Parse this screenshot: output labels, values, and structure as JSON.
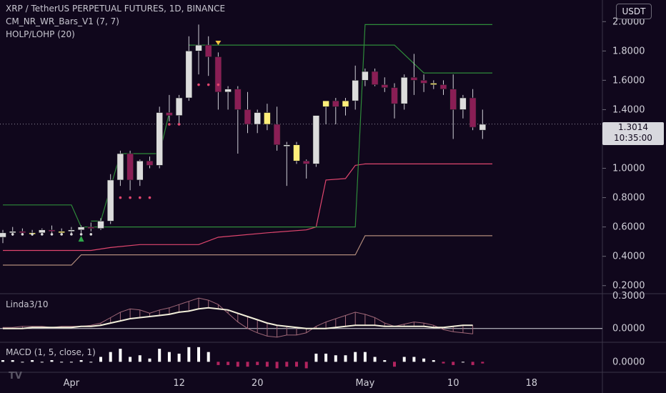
{
  "header": {
    "title": "XRP / TetherUS PERPETUAL FUTURES, 1D, BINANCE",
    "indicator1": "CM_NR_WR_Bars_V1 (7, 7)",
    "indicator2": "HOLP/LOHP (20)",
    "currency_button": "USDT"
  },
  "last_price": {
    "value": "1.3014",
    "countdown": "10:35:00"
  },
  "colors": {
    "background": "#10071c",
    "up_candle": "#dcdcdc",
    "down_candle": "#8a1e55",
    "narrow_range": "#ffee7a",
    "green_line": "#2e8b3a",
    "pink_line": "#e0466e",
    "tan_line": "#b08a7a",
    "linda_fast": "#a06878",
    "linda_slow": "#f2efda",
    "macd_up": "#ffffff",
    "macd_down": "#b3245f"
  },
  "chart_data": [
    {
      "type": "candlestick",
      "name": "main",
      "y_axis_labels": [
        "0.2000",
        "0.4000",
        "0.6000",
        "0.8000",
        "1.0000",
        "1.2000",
        "1.4000",
        "1.6000",
        "1.8000",
        "2.0000"
      ],
      "ylim": [
        0.15,
        2.05
      ],
      "x_axis_labels": [
        "Apr",
        "12",
        "20",
        "May",
        "10",
        "18"
      ],
      "x_axis_dates": [
        "2021-04-01",
        "2021-04-12",
        "2021-04-20",
        "2021-05-01",
        "2021-05-10",
        "2021-05-18"
      ],
      "candles": [
        {
          "date": "2021-03-25",
          "o": 0.53,
          "h": 0.58,
          "l": 0.49,
          "c": 0.56,
          "s": "up"
        },
        {
          "date": "2021-03-26",
          "o": 0.56,
          "h": 0.6,
          "l": 0.54,
          "c": 0.57,
          "s": "up"
        },
        {
          "date": "2021-03-27",
          "o": 0.57,
          "h": 0.59,
          "l": 0.55,
          "c": 0.56,
          "s": "down"
        },
        {
          "date": "2021-03-28",
          "o": 0.56,
          "h": 0.58,
          "l": 0.54,
          "c": 0.56,
          "s": "nr"
        },
        {
          "date": "2021-03-29",
          "o": 0.56,
          "h": 0.59,
          "l": 0.55,
          "c": 0.58,
          "s": "up"
        },
        {
          "date": "2021-03-30",
          "o": 0.58,
          "h": 0.61,
          "l": 0.56,
          "c": 0.57,
          "s": "down"
        },
        {
          "date": "2021-03-31",
          "o": 0.57,
          "h": 0.59,
          "l": 0.55,
          "c": 0.56,
          "s": "nr"
        },
        {
          "date": "2021-04-01",
          "o": 0.57,
          "h": 0.6,
          "l": 0.55,
          "c": 0.58,
          "s": "up"
        },
        {
          "date": "2021-04-02",
          "o": 0.58,
          "h": 0.61,
          "l": 0.56,
          "c": 0.6,
          "s": "up"
        },
        {
          "date": "2021-04-03",
          "o": 0.6,
          "h": 0.63,
          "l": 0.57,
          "c": 0.59,
          "s": "down"
        },
        {
          "date": "2021-04-04",
          "o": 0.59,
          "h": 0.66,
          "l": 0.58,
          "c": 0.64,
          "s": "up"
        },
        {
          "date": "2021-04-05",
          "o": 0.64,
          "h": 0.96,
          "l": 0.62,
          "c": 0.92,
          "s": "up"
        },
        {
          "date": "2021-04-06",
          "o": 0.92,
          "h": 1.12,
          "l": 0.88,
          "c": 1.1,
          "s": "up"
        },
        {
          "date": "2021-04-07",
          "o": 1.1,
          "h": 1.12,
          "l": 0.85,
          "c": 0.92,
          "s": "down"
        },
        {
          "date": "2021-04-08",
          "o": 0.92,
          "h": 1.06,
          "l": 0.88,
          "c": 1.05,
          "s": "up"
        },
        {
          "date": "2021-04-09",
          "o": 1.05,
          "h": 1.08,
          "l": 1.0,
          "c": 1.02,
          "s": "down"
        },
        {
          "date": "2021-04-10",
          "o": 1.02,
          "h": 1.42,
          "l": 1.0,
          "c": 1.38,
          "s": "up"
        },
        {
          "date": "2021-04-11",
          "o": 1.38,
          "h": 1.5,
          "l": 1.32,
          "c": 1.36,
          "s": "down"
        },
        {
          "date": "2021-04-12",
          "o": 1.36,
          "h": 1.5,
          "l": 1.3,
          "c": 1.48,
          "s": "up"
        },
        {
          "date": "2021-04-13",
          "o": 1.48,
          "h": 1.9,
          "l": 1.46,
          "c": 1.8,
          "s": "up"
        },
        {
          "date": "2021-04-14",
          "o": 1.8,
          "h": 1.98,
          "l": 1.64,
          "c": 1.84,
          "s": "up"
        },
        {
          "date": "2021-04-15",
          "o": 1.84,
          "h": 1.9,
          "l": 1.63,
          "c": 1.76,
          "s": "down"
        },
        {
          "date": "2021-04-16",
          "o": 1.76,
          "h": 1.79,
          "l": 1.4,
          "c": 1.52,
          "s": "down"
        },
        {
          "date": "2021-04-17",
          "o": 1.52,
          "h": 1.56,
          "l": 1.4,
          "c": 1.54,
          "s": "up"
        },
        {
          "date": "2021-04-18",
          "o": 1.54,
          "h": 1.56,
          "l": 1.1,
          "c": 1.4,
          "s": "down"
        },
        {
          "date": "2021-04-19",
          "o": 1.4,
          "h": 1.52,
          "l": 1.24,
          "c": 1.3,
          "s": "down"
        },
        {
          "date": "2021-04-20",
          "o": 1.3,
          "h": 1.4,
          "l": 1.24,
          "c": 1.38,
          "s": "up"
        },
        {
          "date": "2021-04-21",
          "o": 1.38,
          "h": 1.44,
          "l": 1.26,
          "c": 1.3,
          "s": "nr"
        },
        {
          "date": "2021-04-22",
          "o": 1.3,
          "h": 1.42,
          "l": 1.12,
          "c": 1.16,
          "s": "down"
        },
        {
          "date": "2021-04-23",
          "o": 1.16,
          "h": 1.18,
          "l": 0.88,
          "c": 1.15,
          "s": "up"
        },
        {
          "date": "2021-04-24",
          "o": 1.16,
          "h": 1.18,
          "l": 1.03,
          "c": 1.05,
          "s": "nr"
        },
        {
          "date": "2021-04-25",
          "o": 1.05,
          "h": 1.06,
          "l": 0.93,
          "c": 1.03,
          "s": "down"
        },
        {
          "date": "2021-04-26",
          "o": 1.03,
          "h": 1.36,
          "l": 1.01,
          "c": 1.36,
          "s": "up"
        },
        {
          "date": "2021-04-27",
          "o": 1.42,
          "h": 1.46,
          "l": 1.3,
          "c": 1.46,
          "s": "nr"
        },
        {
          "date": "2021-04-28",
          "o": 1.46,
          "h": 1.48,
          "l": 1.3,
          "c": 1.42,
          "s": "down"
        },
        {
          "date": "2021-04-29",
          "o": 1.42,
          "h": 1.48,
          "l": 1.36,
          "c": 1.46,
          "s": "nr"
        },
        {
          "date": "2021-04-30",
          "o": 1.46,
          "h": 1.7,
          "l": 1.4,
          "c": 1.6,
          "s": "up"
        },
        {
          "date": "2021-05-01",
          "o": 1.6,
          "h": 1.68,
          "l": 1.56,
          "c": 1.66,
          "s": "up"
        },
        {
          "date": "2021-05-02",
          "o": 1.66,
          "h": 1.68,
          "l": 1.56,
          "c": 1.57,
          "s": "down"
        },
        {
          "date": "2021-05-03",
          "o": 1.57,
          "h": 1.62,
          "l": 1.52,
          "c": 1.55,
          "s": "down"
        },
        {
          "date": "2021-05-04",
          "o": 1.55,
          "h": 1.58,
          "l": 1.34,
          "c": 1.44,
          "s": "down"
        },
        {
          "date": "2021-05-05",
          "o": 1.44,
          "h": 1.64,
          "l": 1.4,
          "c": 1.62,
          "s": "up"
        },
        {
          "date": "2021-05-06",
          "o": 1.62,
          "h": 1.78,
          "l": 1.5,
          "c": 1.6,
          "s": "down"
        },
        {
          "date": "2021-05-07",
          "o": 1.6,
          "h": 1.64,
          "l": 1.52,
          "c": 1.58,
          "s": "down"
        },
        {
          "date": "2021-05-08",
          "o": 1.58,
          "h": 1.6,
          "l": 1.54,
          "c": 1.57,
          "s": "nr"
        },
        {
          "date": "2021-05-09",
          "o": 1.57,
          "h": 1.6,
          "l": 1.5,
          "c": 1.54,
          "s": "down"
        },
        {
          "date": "2021-05-10",
          "o": 1.54,
          "h": 1.64,
          "l": 1.2,
          "c": 1.4,
          "s": "down"
        },
        {
          "date": "2021-05-11",
          "o": 1.4,
          "h": 1.5,
          "l": 1.34,
          "c": 1.48,
          "s": "up"
        },
        {
          "date": "2021-05-12",
          "o": 1.48,
          "h": 1.54,
          "l": 1.26,
          "c": 1.28,
          "s": "down"
        },
        {
          "date": "2021-05-13",
          "o": 1.26,
          "h": 1.4,
          "l": 1.2,
          "c": 1.3,
          "s": "up"
        }
      ],
      "green_line": [
        [
          "2021-03-25",
          0.75
        ],
        [
          "2021-04-01",
          0.75
        ],
        [
          "2021-04-02",
          0.6
        ],
        [
          "2021-04-30",
          0.6
        ],
        [
          "2021-05-01",
          1.98
        ],
        [
          "2021-05-14",
          1.98
        ]
      ],
      "green_line_2": [
        [
          "2021-04-13",
          1.84
        ],
        [
          "2021-05-04",
          1.84
        ],
        [
          "2021-05-07",
          1.65
        ],
        [
          "2021-05-14",
          1.65
        ]
      ],
      "green_step": [
        [
          "2021-04-03",
          0.64
        ],
        [
          "2021-04-04",
          0.64
        ],
        [
          "2021-04-06",
          1.1
        ],
        [
          "2021-04-10",
          1.1
        ],
        [
          "2021-04-11",
          1.38
        ]
      ],
      "pink_line": [
        [
          "2021-03-25",
          0.44
        ],
        [
          "2021-04-03",
          0.44
        ],
        [
          "2021-04-05",
          0.46
        ],
        [
          "2021-04-08",
          0.48
        ],
        [
          "2021-04-14",
          0.48
        ],
        [
          "2021-04-16",
          0.53
        ],
        [
          "2021-04-21",
          0.56
        ],
        [
          "2021-04-25",
          0.58
        ],
        [
          "2021-04-26",
          0.6
        ],
        [
          "2021-04-27",
          0.92
        ],
        [
          "2021-04-29",
          0.93
        ],
        [
          "2021-04-30",
          1.02
        ],
        [
          "2021-05-01",
          1.03
        ],
        [
          "2021-05-14",
          1.03
        ]
      ],
      "tan_line": [
        [
          "2021-03-25",
          0.34
        ],
        [
          "2021-04-01",
          0.34
        ],
        [
          "2021-04-02",
          0.41
        ],
        [
          "2021-04-30",
          0.41
        ],
        [
          "2021-05-01",
          0.54
        ],
        [
          "2021-05-14",
          0.54
        ]
      ]
    },
    {
      "type": "line",
      "name": "Linda3/10",
      "label": "Linda3/10",
      "y_axis_labels": [
        "0.3000",
        "0.0000"
      ],
      "ylim": [
        -0.12,
        0.32
      ],
      "zero_level": 0.0,
      "series": [
        {
          "values_fast": [
            0.01,
            0.01,
            0.02,
            0.02,
            0.02,
            0.01,
            0.02,
            0.02,
            0.02,
            0.03,
            0.05,
            0.1,
            0.15,
            0.18,
            0.17,
            0.14,
            0.17,
            0.19,
            0.22,
            0.25,
            0.28,
            0.26,
            0.22,
            0.14,
            0.06,
            0.0,
            -0.04,
            -0.07,
            -0.08,
            -0.06,
            -0.06,
            -0.04,
            0.02,
            0.06,
            0.09,
            0.12,
            0.15,
            0.13,
            0.1,
            0.05,
            0.02,
            0.04,
            0.06,
            0.05,
            0.03,
            -0.01,
            -0.03,
            -0.04,
            -0.05
          ]
        },
        {
          "values_slow": [
            0.0,
            0.0,
            0.0,
            0.01,
            0.01,
            0.01,
            0.01,
            0.01,
            0.02,
            0.02,
            0.03,
            0.05,
            0.07,
            0.09,
            0.1,
            0.11,
            0.12,
            0.13,
            0.15,
            0.16,
            0.18,
            0.19,
            0.18,
            0.17,
            0.14,
            0.11,
            0.08,
            0.05,
            0.03,
            0.02,
            0.01,
            0.0,
            0.0,
            0.0,
            0.01,
            0.02,
            0.03,
            0.03,
            0.03,
            0.02,
            0.02,
            0.02,
            0.02,
            0.02,
            0.01,
            0.01,
            0.02,
            0.03,
            0.03
          ]
        }
      ]
    },
    {
      "type": "bar",
      "name": "MACD",
      "label": "MACD (1, 5, close, 1)",
      "y_axis_labels": [
        "0.0000"
      ],
      "ylim": [
        -0.06,
        0.12
      ],
      "values": [
        0.01,
        0.01,
        0.0,
        0.01,
        0.0,
        0.01,
        0.0,
        0.0,
        0.01,
        0.0,
        0.03,
        0.06,
        0.08,
        0.03,
        0.04,
        0.02,
        0.08,
        0.06,
        0.05,
        0.09,
        0.09,
        0.06,
        -0.02,
        -0.02,
        -0.03,
        -0.03,
        -0.02,
        -0.03,
        -0.04,
        -0.03,
        -0.03,
        -0.04,
        0.05,
        0.05,
        0.04,
        0.04,
        0.06,
        0.06,
        0.03,
        0.01,
        -0.03,
        0.03,
        0.03,
        0.02,
        0.01,
        -0.01,
        -0.02,
        0.0,
        -0.02,
        -0.01
      ]
    }
  ]
}
